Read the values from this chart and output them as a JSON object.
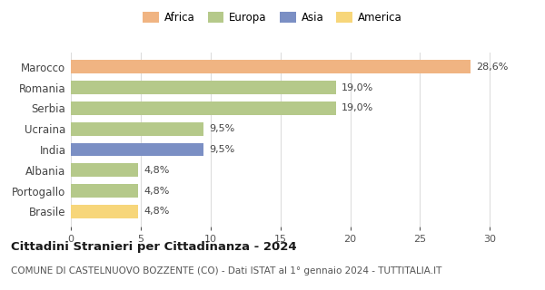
{
  "categories": [
    "Marocco",
    "Romania",
    "Serbia",
    "Ucraina",
    "India",
    "Albania",
    "Portogallo",
    "Brasile"
  ],
  "values": [
    28.6,
    19.0,
    19.0,
    9.5,
    9.5,
    4.8,
    4.8,
    4.8
  ],
  "labels": [
    "28,6%",
    "19,0%",
    "19,0%",
    "9,5%",
    "9,5%",
    "4,8%",
    "4,8%",
    "4,8%"
  ],
  "colors": [
    "#f0b482",
    "#b5c98a",
    "#b5c98a",
    "#b5c98a",
    "#7b8fc4",
    "#b5c98a",
    "#b5c98a",
    "#f7d67a"
  ],
  "legend_labels": [
    "Africa",
    "Europa",
    "Asia",
    "America"
  ],
  "legend_colors": [
    "#f0b482",
    "#b5c98a",
    "#7b8fc4",
    "#f7d67a"
  ],
  "xlim": [
    0,
    32
  ],
  "xticks": [
    0,
    5,
    10,
    15,
    20,
    25,
    30
  ],
  "title": "Cittadini Stranieri per Cittadinanza - 2024",
  "subtitle": "COMUNE DI CASTELNUOVO BOZZENTE (CO) - Dati ISTAT al 1° gennaio 2024 - TUTTITALIA.IT",
  "title_fontsize": 9.5,
  "subtitle_fontsize": 7.5,
  "bar_label_fontsize": 8,
  "ytick_fontsize": 8.5,
  "xtick_fontsize": 8,
  "legend_fontsize": 8.5,
  "background_color": "#ffffff",
  "grid_color": "#dddddd"
}
